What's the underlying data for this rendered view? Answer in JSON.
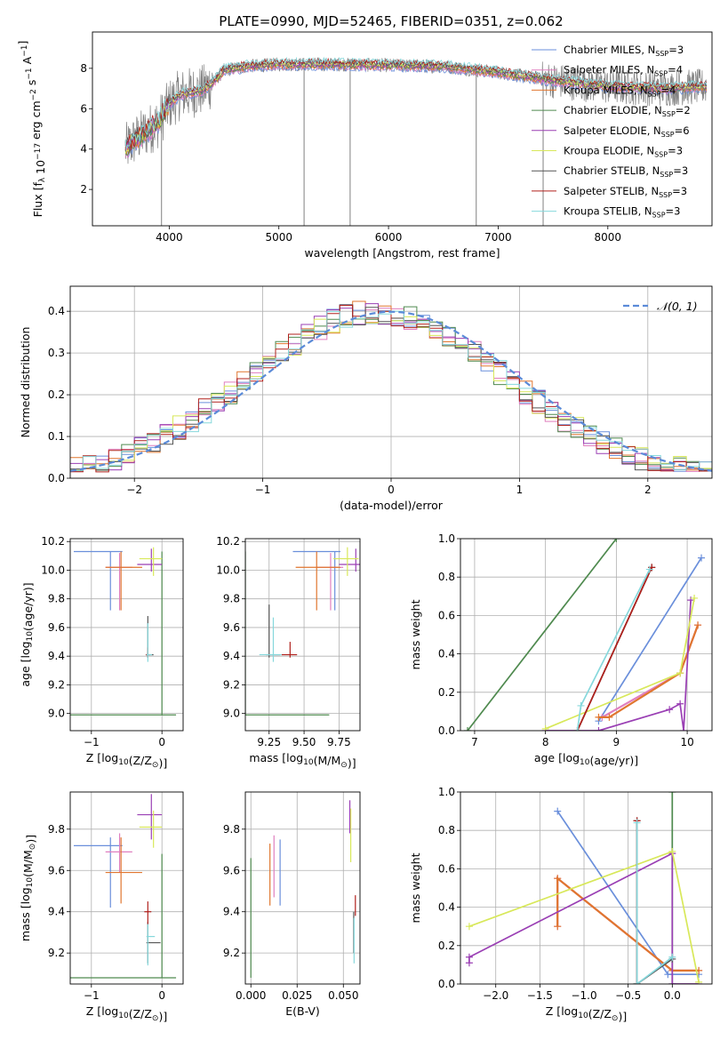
{
  "figure_title": "PLATE=0990, MJD=52465, FIBERID=0351, z=0.062",
  "colors": {
    "chabrier_miles": "#6a8fdb",
    "salpeter_miles": "#e07fbf",
    "kroupa_miles": "#e0762f",
    "chabrier_elodie": "#4f8a4f",
    "salpeter_elodie": "#9a3fb4",
    "kroupa_elodie": "#d8e85a",
    "chabrier_stelib": "#555555",
    "salpeter_stelib": "#b0201c",
    "kroupa_stelib": "#86d8dc",
    "data": "#808080",
    "normal": "#5b8bd8"
  },
  "chart_data": [
    {
      "id": "spectrum",
      "type": "line",
      "xlabel": "wavelength [Angstrom, rest frame]",
      "ylabel": "Flux [f_λ 10^-17 erg cm^-2 s^-1 A^-1]",
      "xlim": [
        3300,
        8950
      ],
      "ylim": [
        0.2,
        9.8
      ],
      "xticks": [
        4000,
        5000,
        6000,
        7000,
        8000
      ],
      "yticks": [
        2,
        4,
        6,
        8
      ],
      "legend": [
        {
          "key": "chabrier_miles",
          "label": "Chabrier MILES, N",
          "sub": "SSP",
          "suffix": "=3"
        },
        {
          "key": "salpeter_miles",
          "label": "Salpeter MILES, N",
          "sub": "SSP",
          "suffix": "=4"
        },
        {
          "key": "kroupa_miles",
          "label": "Kroupa MILES, N",
          "sub": "SSP",
          "suffix": "=4"
        },
        {
          "key": "chabrier_elodie",
          "label": "Chabrier ELODIE, N",
          "sub": "SSP",
          "suffix": "=2"
        },
        {
          "key": "salpeter_elodie",
          "label": "Salpeter ELODIE, N",
          "sub": "SSP",
          "suffix": "=6"
        },
        {
          "key": "kroupa_elodie",
          "label": "Kroupa ELODIE, N",
          "sub": "SSP",
          "suffix": "=3"
        },
        {
          "key": "chabrier_stelib",
          "label": "Chabrier STELIB, N",
          "sub": "SSP",
          "suffix": "=3"
        },
        {
          "key": "salpeter_stelib",
          "label": "Salpeter STELIB, N",
          "sub": "SSP",
          "suffix": "=3"
        },
        {
          "key": "kroupa_stelib",
          "label": "Kroupa STELIB, N",
          "sub": "SSP",
          "suffix": "=3"
        }
      ],
      "continuum": [
        [
          3600,
          4.0
        ],
        [
          3700,
          4.5
        ],
        [
          3800,
          4.9
        ],
        [
          3900,
          5.3
        ],
        [
          4000,
          6.2
        ],
        [
          4100,
          6.7
        ],
        [
          4200,
          6.8
        ],
        [
          4300,
          6.9
        ],
        [
          4400,
          7.3
        ],
        [
          4500,
          7.9
        ],
        [
          4700,
          8.1
        ],
        [
          5000,
          8.2
        ],
        [
          5500,
          8.2
        ],
        [
          6000,
          8.15
        ],
        [
          6500,
          8.1
        ],
        [
          7000,
          7.8
        ],
        [
          7500,
          7.4
        ],
        [
          8000,
          7.1
        ],
        [
          8500,
          7.0
        ],
        [
          8900,
          7.1
        ]
      ]
    },
    {
      "id": "residuals",
      "type": "histogram",
      "xlabel": "(data-model)/error",
      "ylabel": "Normed distribution",
      "xlim": [
        -2.5,
        2.5
      ],
      "ylim": [
        0,
        0.46
      ],
      "xticks": [
        -2,
        -1,
        0,
        1,
        2
      ],
      "yticks": [
        0.0,
        0.1,
        0.2,
        0.3,
        0.4
      ],
      "bin_width": 0.1,
      "normal_label": "𝒩(0, 1)",
      "normal": {
        "mean": 0,
        "sigma": 1
      }
    },
    {
      "id": "age_vs_Z",
      "type": "errorbar",
      "xlabel": "Z [log10(Z/Z⊙)]",
      "ylabel": "age  [log10(age/yr)]",
      "xlim": [
        -1.3,
        0.3
      ],
      "ylim": [
        8.88,
        10.22
      ],
      "xticks": [
        -1,
        0
      ],
      "yticks": [
        9.0,
        9.2,
        9.4,
        9.6,
        9.8,
        10.0,
        10.2
      ],
      "points": [
        {
          "key": "chabrier_miles",
          "x": -0.73,
          "y": 10.13,
          "xerr": [
            0.52,
            0.17
          ],
          "yerr": [
            0.41,
            0.0
          ]
        },
        {
          "key": "salpeter_miles",
          "x": -0.6,
          "y": 10.02,
          "xerr": [
            0.2,
            0.18
          ],
          "yerr": [
            0.3,
            0.1
          ]
        },
        {
          "key": "kroupa_miles",
          "x": -0.58,
          "y": 10.02,
          "xerr": [
            0.22,
            0.3
          ],
          "yerr": [
            0.3,
            0.11
          ]
        },
        {
          "key": "chabrier_elodie",
          "x": 0.0,
          "y": 8.99,
          "xerr": [
            1.3,
            0.2
          ],
          "yerr": [
            0.0,
            1.14
          ]
        },
        {
          "key": "salpeter_elodie",
          "x": -0.15,
          "y": 10.04,
          "xerr": [
            0.2,
            0.15
          ],
          "yerr": [
            0.05,
            0.11
          ]
        },
        {
          "key": "kroupa_elodie",
          "x": -0.12,
          "y": 10.08,
          "xerr": [
            0.2,
            0.12
          ],
          "yerr": [
            0.12,
            0.08
          ]
        },
        {
          "key": "chabrier_stelib",
          "x": -0.2,
          "y": 9.41,
          "xerr": [
            0.02,
            0.08
          ],
          "yerr": [
            0.02,
            0.27
          ]
        },
        {
          "key": "salpeter_stelib",
          "x": -0.2,
          "y": 9.41,
          "xerr": [
            0.03,
            0.03
          ],
          "yerr": [
            0.02,
            0.05
          ]
        },
        {
          "key": "kroupa_stelib",
          "x": -0.2,
          "y": 9.41,
          "xerr": [
            0.02,
            0.06
          ],
          "yerr": [
            0.05,
            0.22
          ]
        }
      ]
    },
    {
      "id": "age_vs_mass",
      "type": "errorbar",
      "xlabel": "mass [log10(M/M⊙)]",
      "ylabel": "",
      "xlim": [
        9.08,
        9.9
      ],
      "ylim": [
        8.88,
        10.22
      ],
      "xticks": [
        9.25,
        9.5,
        9.75
      ],
      "yticks": [
        9.0,
        9.2,
        9.4,
        9.6,
        9.8,
        10.0,
        10.2
      ],
      "points": [
        {
          "key": "chabrier_miles",
          "x": 9.72,
          "y": 10.13,
          "xerr": [
            0.3,
            0.04
          ],
          "yerr": [
            0.41,
            0.0
          ]
        },
        {
          "key": "salpeter_miles",
          "x": 9.69,
          "y": 10.02,
          "xerr": [
            0.1,
            0.09
          ],
          "yerr": [
            0.3,
            0.1
          ]
        },
        {
          "key": "kroupa_miles",
          "x": 9.59,
          "y": 10.02,
          "xerr": [
            0.15,
            0.17
          ],
          "yerr": [
            0.3,
            0.11
          ]
        },
        {
          "key": "chabrier_elodie",
          "x": 9.08,
          "y": 8.99,
          "xerr": [
            0.0,
            0.6
          ],
          "yerr": [
            0.0,
            1.14
          ]
        },
        {
          "key": "salpeter_elodie",
          "x": 9.87,
          "y": 10.04,
          "xerr": [
            0.12,
            0.1
          ],
          "yerr": [
            0.05,
            0.11
          ]
        },
        {
          "key": "kroupa_elodie",
          "x": 9.81,
          "y": 10.08,
          "xerr": [
            0.1,
            0.08
          ],
          "yerr": [
            0.12,
            0.08
          ]
        },
        {
          "key": "chabrier_stelib",
          "x": 9.25,
          "y": 9.41,
          "xerr": [
            0.02,
            0.08
          ],
          "yerr": [
            0.02,
            0.35
          ]
        },
        {
          "key": "salpeter_stelib",
          "x": 9.4,
          "y": 9.41,
          "xerr": [
            0.06,
            0.05
          ],
          "yerr": [
            0.02,
            0.09
          ]
        },
        {
          "key": "kroupa_stelib",
          "x": 9.28,
          "y": 9.41,
          "xerr": [
            0.1,
            0.06
          ],
          "yerr": [
            0.05,
            0.26
          ]
        }
      ]
    },
    {
      "id": "weight_vs_age",
      "type": "line",
      "xlabel": "age  [log10(age/yr)]",
      "ylabel": "mass weight",
      "xlim": [
        6.8,
        10.35
      ],
      "ylim": [
        0,
        1
      ],
      "xticks": [
        7,
        8,
        9,
        10
      ],
      "yticks": [
        0.0,
        0.2,
        0.4,
        0.6,
        0.8,
        1.0
      ],
      "series": [
        {
          "key": "chabrier_elodie",
          "x": [
            6.9,
            9.0
          ],
          "y": [
            0.0,
            1.0
          ]
        },
        {
          "key": "chabrier_miles",
          "x": [
            8.75,
            10.2
          ],
          "y": [
            0.05,
            0.9
          ]
        },
        {
          "key": "salpeter_miles",
          "x": [
            8.8,
            9.9,
            10.15
          ],
          "y": [
            0.07,
            0.3,
            0.55
          ]
        },
        {
          "key": "kroupa_miles",
          "x": [
            8.75,
            8.9,
            9.9,
            10.15
          ],
          "y": [
            0.07,
            0.07,
            0.3,
            0.55
          ]
        },
        {
          "key": "salpeter_elodie",
          "x": [
            8.0,
            8.75,
            9.75,
            9.9,
            9.95,
            10.05
          ],
          "y": [
            0.0,
            0.0,
            0.11,
            0.14,
            0.0,
            0.68
          ]
        },
        {
          "key": "kroupa_elodie",
          "x": [
            8.0,
            9.9,
            10.1
          ],
          "y": [
            0.01,
            0.3,
            0.69
          ]
        },
        {
          "key": "chabrier_stelib",
          "x": [
            8.45,
            9.5
          ],
          "y": [
            0.0,
            0.85
          ]
        },
        {
          "key": "salpeter_stelib",
          "x": [
            8.45,
            9.5
          ],
          "y": [
            0.0,
            0.85
          ]
        },
        {
          "key": "kroupa_stelib",
          "x": [
            8.45,
            8.5,
            9.47
          ],
          "y": [
            0.0,
            0.13,
            0.84
          ]
        }
      ]
    },
    {
      "id": "mass_vs_Z",
      "type": "errorbar",
      "xlabel": "Z [log10(Z/Z⊙)]",
      "ylabel": "mass [log10(M/M⊙)]",
      "xlim": [
        -1.3,
        0.3
      ],
      "ylim": [
        9.05,
        9.98
      ],
      "xticks": [
        -1,
        0
      ],
      "yticks": [
        9.2,
        9.4,
        9.6,
        9.8
      ],
      "points": [
        {
          "key": "chabrier_miles",
          "x": -0.73,
          "y": 9.72,
          "xerr": [
            0.52,
            0.17
          ],
          "yerr": [
            0.3,
            0.04
          ]
        },
        {
          "key": "salpeter_miles",
          "x": -0.6,
          "y": 9.69,
          "xerr": [
            0.2,
            0.18
          ],
          "yerr": [
            0.1,
            0.09
          ]
        },
        {
          "key": "kroupa_miles",
          "x": -0.58,
          "y": 9.59,
          "xerr": [
            0.22,
            0.3
          ],
          "yerr": [
            0.15,
            0.17
          ]
        },
        {
          "key": "chabrier_elodie",
          "x": 0.0,
          "y": 9.08,
          "xerr": [
            1.3,
            0.2
          ],
          "yerr": [
            0.0,
            0.6
          ]
        },
        {
          "key": "salpeter_elodie",
          "x": -0.15,
          "y": 9.87,
          "xerr": [
            0.2,
            0.15
          ],
          "yerr": [
            0.12,
            0.1
          ]
        },
        {
          "key": "kroupa_elodie",
          "x": -0.12,
          "y": 9.81,
          "xerr": [
            0.2,
            0.12
          ],
          "yerr": [
            0.1,
            0.08
          ]
        },
        {
          "key": "chabrier_stelib",
          "x": -0.2,
          "y": 9.25,
          "xerr": [
            0.02,
            0.18
          ],
          "yerr": [
            0.1,
            0.1
          ]
        },
        {
          "key": "salpeter_stelib",
          "x": -0.2,
          "y": 9.4,
          "xerr": [
            0.05,
            0.05
          ],
          "yerr": [
            0.06,
            0.05
          ]
        },
        {
          "key": "kroupa_stelib",
          "x": -0.2,
          "y": 9.28,
          "xerr": [
            0.02,
            0.1
          ],
          "yerr": [
            0.14,
            0.06
          ]
        }
      ]
    },
    {
      "id": "mass_vs_ebv",
      "type": "errorbar",
      "xlabel": "E(B-V)",
      "ylabel": "",
      "xlim": [
        -0.003,
        0.059
      ],
      "ylim": [
        9.05,
        9.98
      ],
      "xticks": [
        0.0,
        0.025,
        0.05
      ],
      "xticklabels": [
        "0.000",
        "0.025",
        "0.050"
      ],
      "yticks": [
        9.2,
        9.4,
        9.6,
        9.8
      ],
      "points": [
        {
          "key": "chabrier_miles",
          "x": 0.0158,
          "y": 9.59,
          "xerr": [
            0,
            0
          ],
          "yerr": [
            0.16,
            0.16
          ]
        },
        {
          "key": "salpeter_miles",
          "x": 0.0125,
          "y": 9.62,
          "xerr": [
            0,
            0
          ],
          "yerr": [
            0.15,
            0.15
          ]
        },
        {
          "key": "kroupa_miles",
          "x": 0.0103,
          "y": 9.58,
          "xerr": [
            0,
            0
          ],
          "yerr": [
            0.15,
            0.15
          ]
        },
        {
          "key": "chabrier_elodie",
          "x": 0.0,
          "y": 9.37,
          "xerr": [
            0,
            0
          ],
          "yerr": [
            0.29,
            0.29
          ]
        },
        {
          "key": "salpeter_elodie",
          "x": 0.0535,
          "y": 9.85,
          "xerr": [
            0,
            0
          ],
          "yerr": [
            0.07,
            0.09
          ]
        },
        {
          "key": "kroupa_elodie",
          "x": 0.054,
          "y": 9.77,
          "xerr": [
            0,
            0
          ],
          "yerr": [
            0.13,
            0.13
          ]
        },
        {
          "key": "chabrier_stelib",
          "x": 0.0556,
          "y": 9.3,
          "xerr": [
            0,
            0
          ],
          "yerr": [
            0.1,
            0.1
          ]
        },
        {
          "key": "salpeter_stelib",
          "x": 0.0565,
          "y": 9.43,
          "xerr": [
            0,
            0
          ],
          "yerr": [
            0.05,
            0.05
          ]
        },
        {
          "key": "kroupa_stelib",
          "x": 0.0558,
          "y": 9.26,
          "xerr": [
            0,
            0
          ],
          "yerr": [
            0.11,
            0.11
          ]
        }
      ]
    },
    {
      "id": "weight_vs_Z",
      "type": "line",
      "xlabel": "Z [log10(Z/Z⊙)]",
      "ylabel": "mass weight",
      "xlim": [
        -2.4,
        0.45
      ],
      "ylim": [
        0,
        1
      ],
      "xticks": [
        -2.0,
        -1.5,
        -1.0,
        -0.5,
        0.0
      ],
      "xticklabels": [
        "−2.0",
        "−1.5",
        "−1.0",
        "−0.5",
        "0.0"
      ],
      "yticks": [
        0.0,
        0.2,
        0.4,
        0.6,
        0.8,
        1.0
      ],
      "series": [
        {
          "key": "chabrier_elodie",
          "x": [
            0.0,
            0.0
          ],
          "y": [
            0.0,
            1.0
          ]
        },
        {
          "key": "chabrier_miles",
          "x": [
            -1.3,
            -0.05,
            0.3
          ],
          "y": [
            0.9,
            0.05,
            0.05
          ]
        },
        {
          "key": "salpeter_miles",
          "x": [
            -1.3,
            -1.3,
            0.0,
            0.3
          ],
          "y": [
            0.3,
            0.55,
            0.07,
            0.07
          ]
        },
        {
          "key": "kroupa_miles",
          "x": [
            -1.3,
            -1.3,
            0.0,
            0.3
          ],
          "y": [
            0.3,
            0.55,
            0.07,
            0.07
          ]
        },
        {
          "key": "salpeter_elodie",
          "x": [
            -2.3,
            -2.3,
            0.0,
            0.0,
            0.3
          ],
          "y": [
            0.11,
            0.14,
            0.68,
            0.0,
            0.0
          ]
        },
        {
          "key": "kroupa_elodie",
          "x": [
            -2.3,
            0.0,
            0.3
          ],
          "y": [
            0.3,
            0.69,
            0.01
          ]
        },
        {
          "key": "chabrier_stelib",
          "x": [
            -0.4,
            -0.4,
            0.0,
            -0.4
          ],
          "y": [
            0.85,
            0.0,
            0.13,
            0.0
          ]
        },
        {
          "key": "salpeter_stelib",
          "x": [
            -0.4,
            -0.4
          ],
          "y": [
            0.85,
            0.0
          ]
        },
        {
          "key": "kroupa_stelib",
          "x": [
            -0.4,
            -0.4,
            0.0,
            -0.4
          ],
          "y": [
            0.84,
            0.0,
            0.14,
            0.0
          ]
        }
      ]
    }
  ]
}
